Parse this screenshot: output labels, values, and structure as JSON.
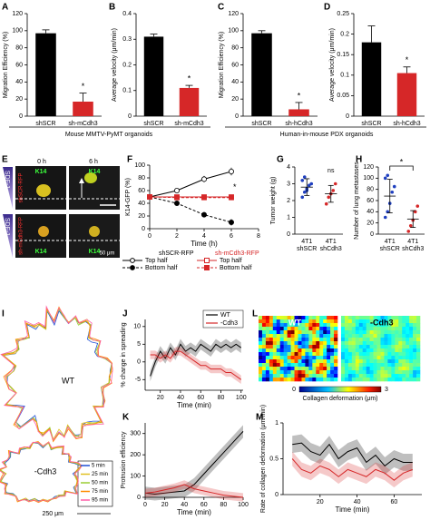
{
  "captions": [
    "Mouse MMTV-PyMT organoids",
    "Human-in-mouse PDX organoids"
  ],
  "image_panels": {
    "E": {
      "panel": "E",
      "time_labels": [
        "0 h",
        "6 h"
      ],
      "marker_labels": [
        "K14",
        "K14",
        "K14",
        "K14"
      ],
      "row_labels": [
        "shSCR-RFP",
        "sh-mCdh3-RFP"
      ],
      "gradient_labels": [
        "SDF-1",
        "SDF-1"
      ],
      "scale_bar": "50 μm"
    },
    "I": {
      "panel": "I",
      "cell_labels": [
        "WT",
        "-Cdh3"
      ],
      "legend": [
        "5 min",
        "25 min",
        "50 min",
        "75 min",
        "95 min"
      ],
      "legend_colors": [
        "#1f4fd6",
        "#e0c020",
        "#9acd32",
        "#ff8c00",
        "#ff5ea8"
      ],
      "scale_bar": "250 μm"
    },
    "L": {
      "panel": "L",
      "map_labels": [
        "WT",
        "-Cdh3"
      ],
      "colorbar_ticks": [
        "0",
        "3"
      ],
      "colorbar_label": "Collagen deformation (μm)"
    }
  },
  "chart_data": [
    {
      "type": "bar",
      "panel": "A",
      "y_label": "Migration Efficiency (%)",
      "categories": [
        "shSCR",
        "sh-mCdh3"
      ],
      "values": [
        97,
        17
      ],
      "errors": [
        4,
        10
      ],
      "colors": [
        "#000000",
        "#d62728"
      ],
      "ylim": [
        0,
        120
      ],
      "yticks": [
        0,
        20,
        40,
        60,
        80,
        100,
        120
      ],
      "annotations": [
        "*"
      ]
    },
    {
      "type": "bar",
      "panel": "B",
      "y_label": "Average velocity (μm/min)",
      "categories": [
        "shSCR",
        "sh-mCdh3"
      ],
      "values": [
        0.31,
        0.11
      ],
      "errors": [
        0.01,
        0.01
      ],
      "colors": [
        "#000000",
        "#d62728"
      ],
      "ylim": [
        0,
        0.4
      ],
      "yticks": [
        0,
        0.1,
        0.2,
        0.3,
        0.4
      ],
      "annotations": [
        "*"
      ]
    },
    {
      "type": "bar",
      "panel": "C",
      "y_label": "Migration Efficiency (%)",
      "categories": [
        "shSCR",
        "sh-hCdh3"
      ],
      "values": [
        97,
        8
      ],
      "errors": [
        3,
        8
      ],
      "colors": [
        "#000000",
        "#d62728"
      ],
      "ylim": [
        0,
        120
      ],
      "yticks": [
        0,
        20,
        40,
        60,
        80,
        100,
        120
      ],
      "annotations": [
        "*"
      ]
    },
    {
      "type": "bar",
      "panel": "D",
      "y_label": "Average velocity (μm/min)",
      "categories": [
        "shSCR",
        "sh-hCdh3"
      ],
      "values": [
        0.18,
        0.105
      ],
      "errors": [
        0.04,
        0.015
      ],
      "colors": [
        "#000000",
        "#d62728"
      ],
      "ylim": [
        0,
        0.25
      ],
      "yticks": [
        0,
        0.05,
        0.1,
        0.15,
        0.2,
        0.25
      ],
      "annotations": [
        "*"
      ]
    },
    {
      "type": "line",
      "panel": "F",
      "y_label": "K14-GFP (%)",
      "x_label": "Time (h)",
      "xlim": [
        0,
        8
      ],
      "xticks": [
        0,
        2,
        4,
        6,
        8
      ],
      "ylim": [
        0,
        100
      ],
      "yticks": [
        0,
        20,
        40,
        60,
        80,
        100
      ],
      "legend_groups": [
        "shSCR-RFP",
        "sh-mCdh3-RFP"
      ],
      "annotations": [
        "*"
      ],
      "series": [
        {
          "name": "Top half",
          "color": "#000000",
          "marker": "circle-open",
          "dashed": false,
          "x": [
            0,
            2,
            4,
            6
          ],
          "values": [
            50,
            60,
            78,
            90
          ],
          "errors": [
            0,
            3,
            5,
            6
          ]
        },
        {
          "name": "Bottom half",
          "color": "#000000",
          "marker": "circle-filled",
          "dashed": true,
          "x": [
            0,
            2,
            4,
            6
          ],
          "values": [
            50,
            40,
            22,
            10
          ],
          "errors": [
            0,
            3,
            4,
            5
          ]
        },
        {
          "name": "Top half",
          "color": "#d62728",
          "marker": "square-open",
          "dashed": false,
          "x": [
            0,
            2,
            4,
            6
          ],
          "values": [
            50,
            50,
            50,
            50
          ],
          "errors": [
            0,
            2,
            2,
            2
          ]
        },
        {
          "name": "Bottom half",
          "color": "#d62728",
          "marker": "square-filled",
          "dashed": true,
          "x": [
            0,
            2,
            4,
            6
          ],
          "values": [
            50,
            49,
            49,
            49
          ],
          "errors": [
            0,
            2,
            2,
            2
          ]
        }
      ]
    },
    {
      "type": "dotplot",
      "panel": "G",
      "y_label": "Tumor weight (g)",
      "categories": [
        [
          "4T1",
          "shSCR"
        ],
        [
          "4T1",
          "shCdh3"
        ]
      ],
      "values": [
        2.8,
        2.4
      ],
      "errors": [
        0.5,
        0.5
      ],
      "points": [
        [
          2.2,
          2.5,
          2.7,
          2.9,
          3.0,
          3.2,
          3.4,
          2.6
        ],
        [
          1.8,
          2.2,
          2.4,
          2.6,
          3.0
        ]
      ],
      "colors": [
        "#1f3fbf",
        "#d62728"
      ],
      "ylim": [
        0,
        4
      ],
      "yticks": [
        0,
        1,
        2,
        3,
        4
      ],
      "annotations": [
        "ns"
      ],
      "bracket": false
    },
    {
      "type": "dotplot",
      "panel": "H",
      "y_label": "Number of lung metastases",
      "categories": [
        [
          "4T1",
          "shSCR"
        ],
        [
          "4T1",
          "shCdh3"
        ]
      ],
      "values": [
        68,
        27
      ],
      "errors": [
        30,
        15
      ],
      "points": [
        [
          30,
          40,
          55,
          75,
          85,
          100,
          105
        ],
        [
          5,
          15,
          25,
          40,
          50
        ]
      ],
      "colors": [
        "#1f3fbf",
        "#d62728"
      ],
      "ylim": [
        0,
        120
      ],
      "yticks": [
        0,
        20,
        40,
        60,
        80,
        100,
        120
      ],
      "annotations": [
        "*"
      ],
      "bracket": true
    },
    {
      "type": "line",
      "panel": "J",
      "y_label": "% change in spreading",
      "x_label": "Time (min)",
      "xlim": [
        5,
        102
      ],
      "xticks": [
        20,
        40,
        60,
        80,
        100
      ],
      "ylim": [
        -8,
        12
      ],
      "yticks": [
        -5,
        0,
        5,
        10
      ],
      "legend": true,
      "series": [
        {
          "name": "WT",
          "color": "#000000",
          "band": 1.5,
          "x": [
            10,
            15,
            20,
            25,
            30,
            35,
            40,
            45,
            50,
            55,
            60,
            65,
            70,
            75,
            80,
            85,
            90,
            95,
            100
          ],
          "values": [
            -4,
            0,
            3,
            1,
            4,
            2,
            5,
            3,
            4,
            3,
            5,
            4,
            3,
            5,
            4,
            5,
            4,
            5,
            4
          ]
        },
        {
          "name": "-Cdh3",
          "color": "#d62728",
          "band": 1.2,
          "x": [
            10,
            15,
            20,
            25,
            30,
            35,
            40,
            45,
            50,
            55,
            60,
            65,
            70,
            75,
            80,
            85,
            90,
            95,
            100
          ],
          "values": [
            2,
            2,
            1,
            2,
            1,
            3,
            3,
            2,
            1,
            0,
            -1,
            -1,
            -2,
            -2,
            -2,
            -3,
            -3,
            -4,
            -5
          ]
        }
      ]
    },
    {
      "type": "line",
      "panel": "K",
      "y_label": "Protrusion efficiency",
      "x_label": "Time (min)",
      "xlim": [
        0,
        100
      ],
      "xticks": [
        0,
        20,
        40,
        60,
        80,
        100
      ],
      "ylim": [
        0,
        350
      ],
      "yticks": [
        0,
        100,
        200,
        300
      ],
      "series": [
        {
          "color": "#000000",
          "band": 30,
          "x": [
            0,
            10,
            20,
            30,
            40,
            50,
            60,
            70,
            80,
            90,
            100
          ],
          "values": [
            20,
            15,
            20,
            25,
            30,
            60,
            110,
            160,
            210,
            260,
            310
          ]
        },
        {
          "color": "#d62728",
          "band": 20,
          "x": [
            0,
            10,
            20,
            30,
            40,
            50,
            60,
            70,
            80,
            90,
            100
          ],
          "values": [
            20,
            25,
            35,
            45,
            60,
            40,
            30,
            20,
            10,
            5,
            0
          ]
        }
      ]
    },
    {
      "type": "line",
      "panel": "M",
      "y_label": "Rate of collagen deformation (μm/min)",
      "x_label": "Time (min)",
      "xlim": [
        0,
        75
      ],
      "xticks": [
        20,
        40,
        60
      ],
      "ylim": [
        0,
        1
      ],
      "yticks": [
        0,
        0.5,
        1
      ],
      "series": [
        {
          "color": "#000000",
          "band": 0.12,
          "x": [
            5,
            10,
            15,
            20,
            25,
            30,
            35,
            40,
            45,
            50,
            55,
            60,
            65,
            70
          ],
          "values": [
            0.7,
            0.72,
            0.6,
            0.55,
            0.7,
            0.5,
            0.6,
            0.65,
            0.45,
            0.55,
            0.4,
            0.5,
            0.45,
            0.45
          ]
        },
        {
          "color": "#d62728",
          "band": 0.1,
          "x": [
            5,
            10,
            15,
            20,
            25,
            30,
            35,
            40,
            45,
            50,
            55,
            60,
            65,
            70
          ],
          "values": [
            0.5,
            0.35,
            0.3,
            0.4,
            0.35,
            0.25,
            0.35,
            0.3,
            0.25,
            0.35,
            0.3,
            0.2,
            0.3,
            0.35
          ]
        }
      ]
    }
  ]
}
